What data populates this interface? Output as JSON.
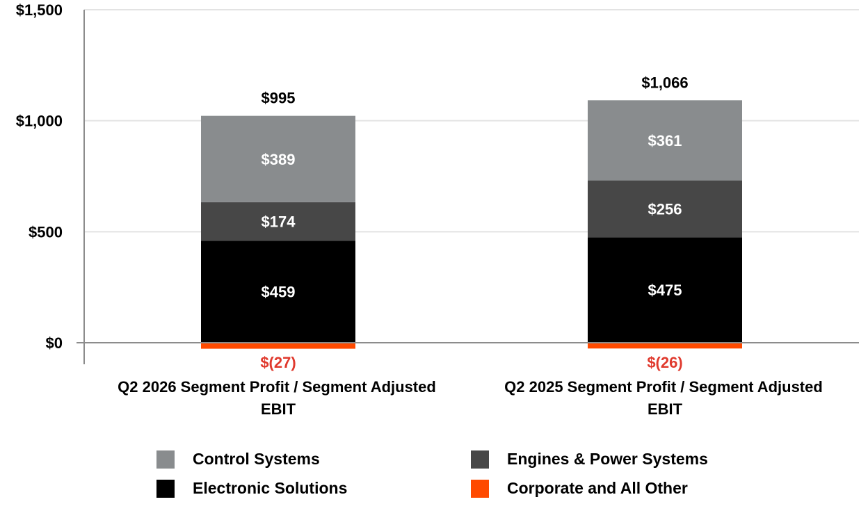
{
  "chart_data": {
    "type": "bar",
    "stacked": true,
    "categories": [
      "Q2 2026 Segment Profit / Segment Adjusted EBIT",
      "Q2 2025 Segment Profit / Segment Adjusted EBIT"
    ],
    "category_lines": [
      [
        "Q2 2026 Segment Profit / Segment Adjusted",
        "EBIT"
      ],
      [
        "Q2 2025 Segment Profit / Segment Adjusted",
        "EBIT"
      ]
    ],
    "series": [
      {
        "name": "Electronic Solutions",
        "color": "#000000",
        "values": [
          459,
          475
        ],
        "labels": [
          "$459",
          "$475"
        ]
      },
      {
        "name": "Engines & Power Systems",
        "color": "#474747",
        "values": [
          174,
          256
        ],
        "labels": [
          "$174",
          "$256"
        ]
      },
      {
        "name": "Control Systems",
        "color": "#898c8e",
        "values": [
          389,
          361
        ],
        "labels": [
          "$389",
          "$361"
        ]
      },
      {
        "name": "Corporate and All Other",
        "color": "#ff4a00",
        "values": [
          -27,
          -26
        ],
        "labels": [
          "$(27)",
          "$(26)"
        ]
      }
    ],
    "totals": [
      995,
      1066
    ],
    "total_labels": [
      "$995",
      "$1,066"
    ],
    "ylim": [
      0,
      1500
    ],
    "yticks": [
      0,
      500,
      1000,
      1500
    ],
    "ytick_labels": [
      "$0",
      "$500",
      "$1,000",
      "$1,500"
    ],
    "grid": true,
    "legend_position": "bottom",
    "legend_order": [
      "Control Systems",
      "Engines & Power Systems",
      "Electronic Solutions",
      "Corporate and All Other"
    ],
    "negative_label_color": "#e03a2e"
  }
}
